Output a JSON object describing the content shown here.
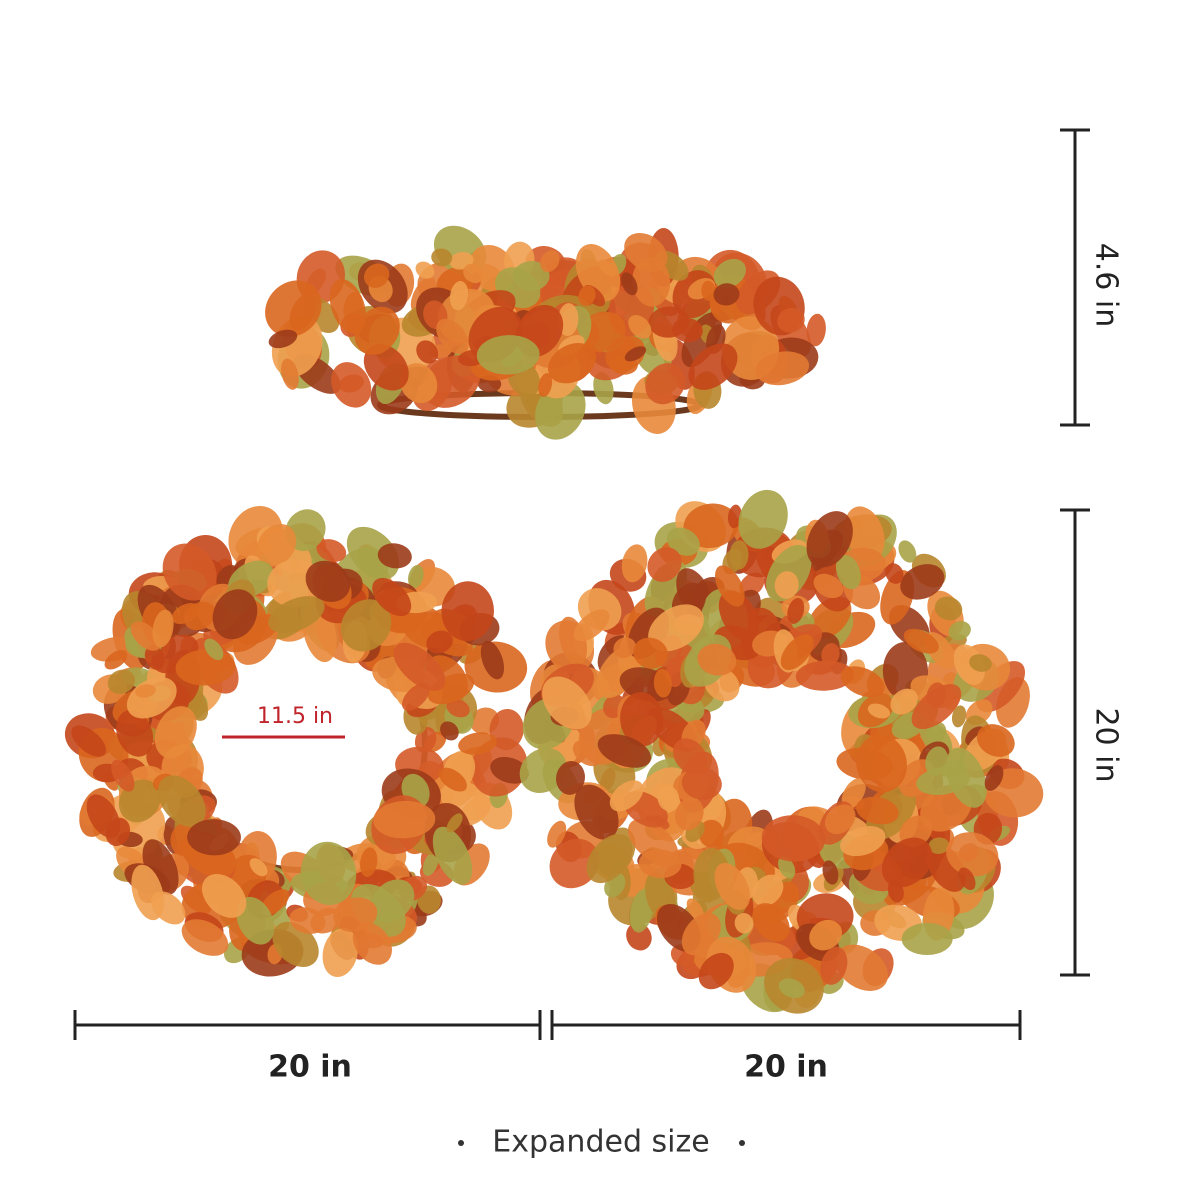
{
  "dimensions": {
    "side_height": "4.6 in",
    "height": "20 in",
    "inner_diameter": "11.5 in",
    "front_width": "20 in",
    "back_width": "20 in"
  },
  "caption": "Expanded size"
}
